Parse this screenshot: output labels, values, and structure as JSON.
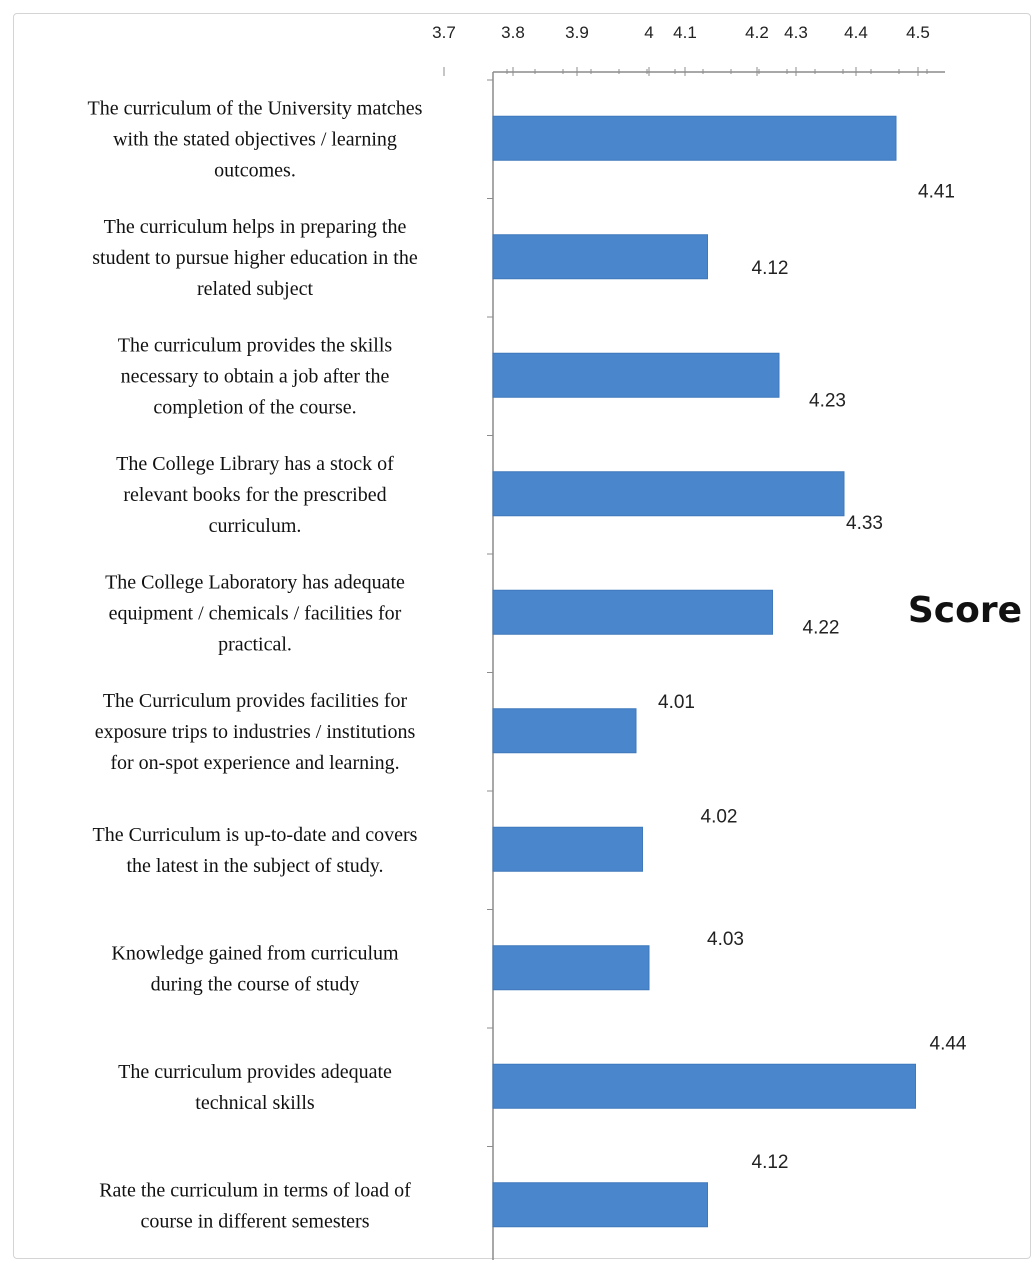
{
  "chart_data": {
    "type": "bar",
    "orientation": "horizontal",
    "categories": [
      "The curriculum of the University matches with the stated objectives / learning outcomes.",
      "The curriculum helps in preparing the student to pursue higher education in the related subject",
      "The curriculum provides the skills necessary to obtain a job after the completion of the course.",
      "The College Library has a stock of relevant books for the prescribed curriculum.",
      "The College Laboratory has adequate equipment / chemicals / facilities for practical.",
      "The Curriculum provides facilities for exposure trips to industries / institutions for on-spot experience and learning.",
      "The Curriculum is up-to-date and covers the latest in the subject of study.",
      "Knowledge gained from curriculum during the course of study",
      "The curriculum provides adequate technical skills",
      "Rate the curriculum in terms of load of course in different semesters"
    ],
    "category_lines": [
      [
        "The curriculum of the University matches",
        "with the stated objectives / learning",
        "outcomes."
      ],
      [
        "The curriculum helps in preparing the",
        "student to pursue higher education in the",
        "related subject"
      ],
      [
        "The curriculum provides the skills",
        "necessary to obtain a job after the",
        "completion of the course."
      ],
      [
        "The College Library has a stock of",
        "relevant books for the prescribed",
        "curriculum."
      ],
      [
        "The College Laboratory has adequate",
        "equipment / chemicals / facilities for",
        "practical."
      ],
      [
        "The Curriculum provides facilities for",
        "exposure trips to industries / institutions",
        "for on-spot experience and learning."
      ],
      [
        "The Curriculum is up-to-date and covers",
        "the latest in the subject of study."
      ],
      [
        "Knowledge gained from curriculum",
        "during the course of study"
      ],
      [
        "The curriculum provides adequate",
        "technical skills"
      ],
      [
        "Rate the curriculum in terms of load of",
        "course in different semesters"
      ]
    ],
    "series": [
      {
        "name": "Score",
        "values": [
          4.41,
          4.12,
          4.23,
          4.33,
          4.22,
          4.01,
          4.02,
          4.03,
          4.44,
          4.12
        ]
      }
    ],
    "data_labels": [
      "4.41",
      "4.12",
      "4.23",
      "4.33",
      "4.22",
      "4.01",
      "4.02",
      "4.03",
      "4.44",
      "4.12"
    ],
    "xaxis": {
      "position": "top",
      "range": [
        3.7,
        4.5
      ],
      "ticks": [
        3.7,
        3.8,
        3.9,
        4.0,
        4.1,
        4.2,
        4.3,
        4.4,
        4.5
      ],
      "tick_labels": [
        "3.7",
        "3.8",
        "3.9",
        "4",
        "4.1",
        "4.2",
        "4.3",
        "4.4",
        "4.5"
      ]
    },
    "legend": {
      "label": "Score",
      "placement": "right"
    },
    "title": "",
    "xlabel": "",
    "ylabel": "",
    "grid": false,
    "colors": {
      "bar": "#4a86cc",
      "bar_edge": "#3f78bb",
      "axis": "#8c8c8c"
    }
  }
}
